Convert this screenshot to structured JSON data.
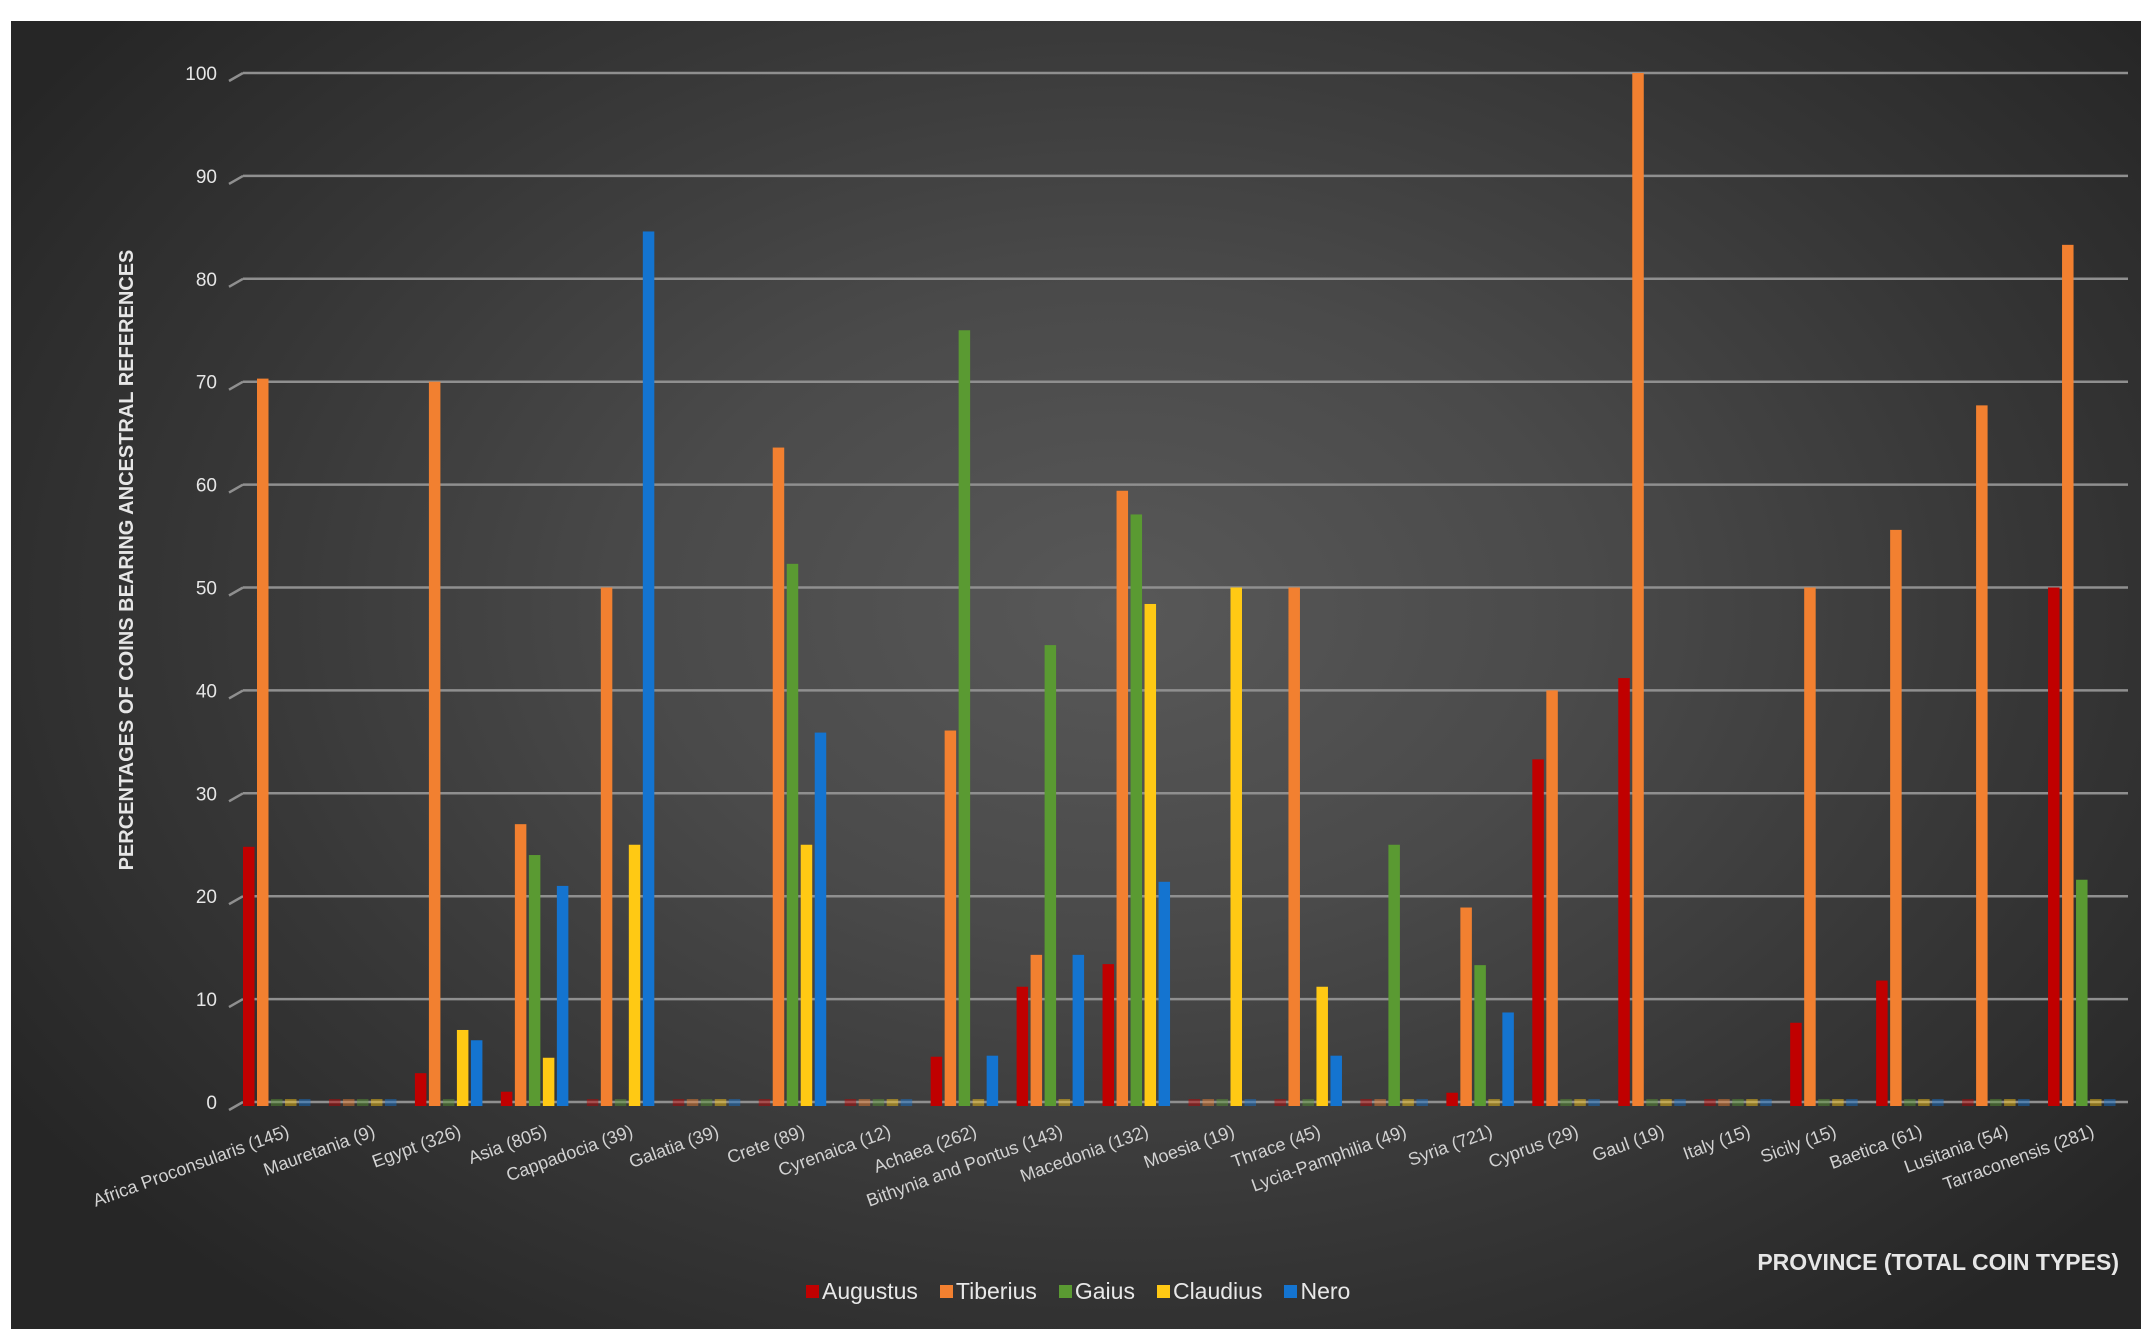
{
  "chart_data": {
    "type": "bar",
    "title": "",
    "xlabel": "PROVINCE (TOTAL COIN TYPES)",
    "ylabel": "PERCENTAGES OF COINS BEARING ANCESTRAL REFERENCES",
    "ylim": [
      0,
      100
    ],
    "yticks": [
      0,
      10,
      20,
      30,
      40,
      50,
      60,
      70,
      80,
      90,
      100
    ],
    "grid": true,
    "legend_position": "bottom",
    "categories": [
      "Africa Proconsularis (145)",
      "Mauretania (9)",
      "Egypt (326)",
      "Asia (805)",
      "Cappadocia (39)",
      "Galatia (39)",
      "Crete (89)",
      "Cyrenaica (12)",
      "Achaea (262)",
      "Bithynia and Pontus (143)",
      "Macedonia (132)",
      "Moesia (19)",
      "Thrace (45)",
      "Lycia-Pamphilia (49)",
      "Syria (721)",
      "Cyprus (29)",
      "Gaul (19)",
      "Italy (15)",
      "Sicily (15)",
      "Baetica (61)",
      "Lusitania (54)",
      "Tarraconensis (281)"
    ],
    "series": [
      {
        "name": "Augustus",
        "color": "#c00000",
        "values": [
          24.8,
          0,
          2.8,
          1,
          0,
          0,
          0,
          0,
          4.4,
          11.2,
          13.4,
          0,
          0,
          0,
          0.9,
          33.3,
          41.2,
          0,
          7.7,
          11.8,
          0,
          50
        ]
      },
      {
        "name": "Tiberius",
        "color": "#f28030",
        "values": [
          70.3,
          0,
          70,
          27,
          50,
          0,
          63.6,
          0,
          36.1,
          14.3,
          59.4,
          0,
          50,
          0,
          18.9,
          40,
          100,
          0,
          50,
          55.6,
          67.7,
          83.3
        ]
      },
      {
        "name": "Gaius",
        "color": "#5a9a32",
        "values": [
          0,
          0,
          0,
          24,
          0,
          0,
          52.3,
          0,
          75,
          44.4,
          57.1,
          0,
          0,
          25,
          13.3,
          0,
          0,
          0,
          0,
          0,
          0,
          21.6
        ]
      },
      {
        "name": "Claudius",
        "color": "#ffc914",
        "values": [
          0,
          0,
          7,
          4.3,
          25,
          0,
          25,
          0,
          0,
          0,
          48.4,
          50,
          11.2,
          0,
          0,
          0,
          0,
          0,
          0,
          0,
          0,
          0
        ]
      },
      {
        "name": "Nero",
        "color": "#1474d0",
        "values": [
          0,
          0,
          6,
          21,
          84.6,
          0,
          35.9,
          0,
          4.5,
          14.3,
          21.4,
          0,
          4.5,
          0,
          8.7,
          0,
          0,
          0,
          0,
          0,
          0,
          0
        ]
      }
    ]
  }
}
